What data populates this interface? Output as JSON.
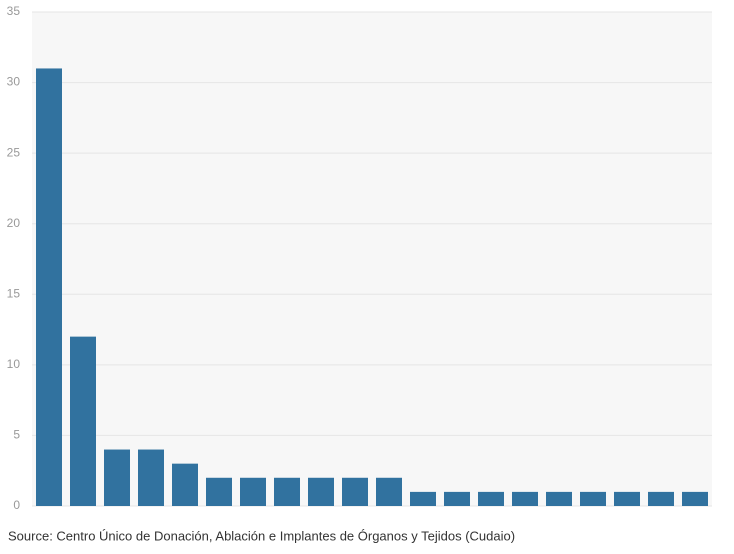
{
  "chart_data": {
    "type": "bar",
    "categories": [
      null,
      null,
      null,
      null,
      null,
      null,
      null,
      null,
      null,
      null,
      null,
      null,
      null,
      null,
      null,
      null,
      null,
      null,
      null,
      null
    ],
    "values": [
      31,
      12,
      4,
      4,
      3,
      2,
      2,
      2,
      2,
      2,
      2,
      1,
      1,
      1,
      1,
      1,
      1,
      1,
      1,
      1
    ],
    "color": "#31729f",
    "ylim": [
      0,
      35
    ],
    "yticks": [
      0,
      5,
      10,
      15,
      20,
      25,
      30,
      35
    ],
    "grid": true,
    "source": "Source: Centro Único de Donación, Ablación e Implantes de Órganos y Tejidos (Cudaio)"
  }
}
